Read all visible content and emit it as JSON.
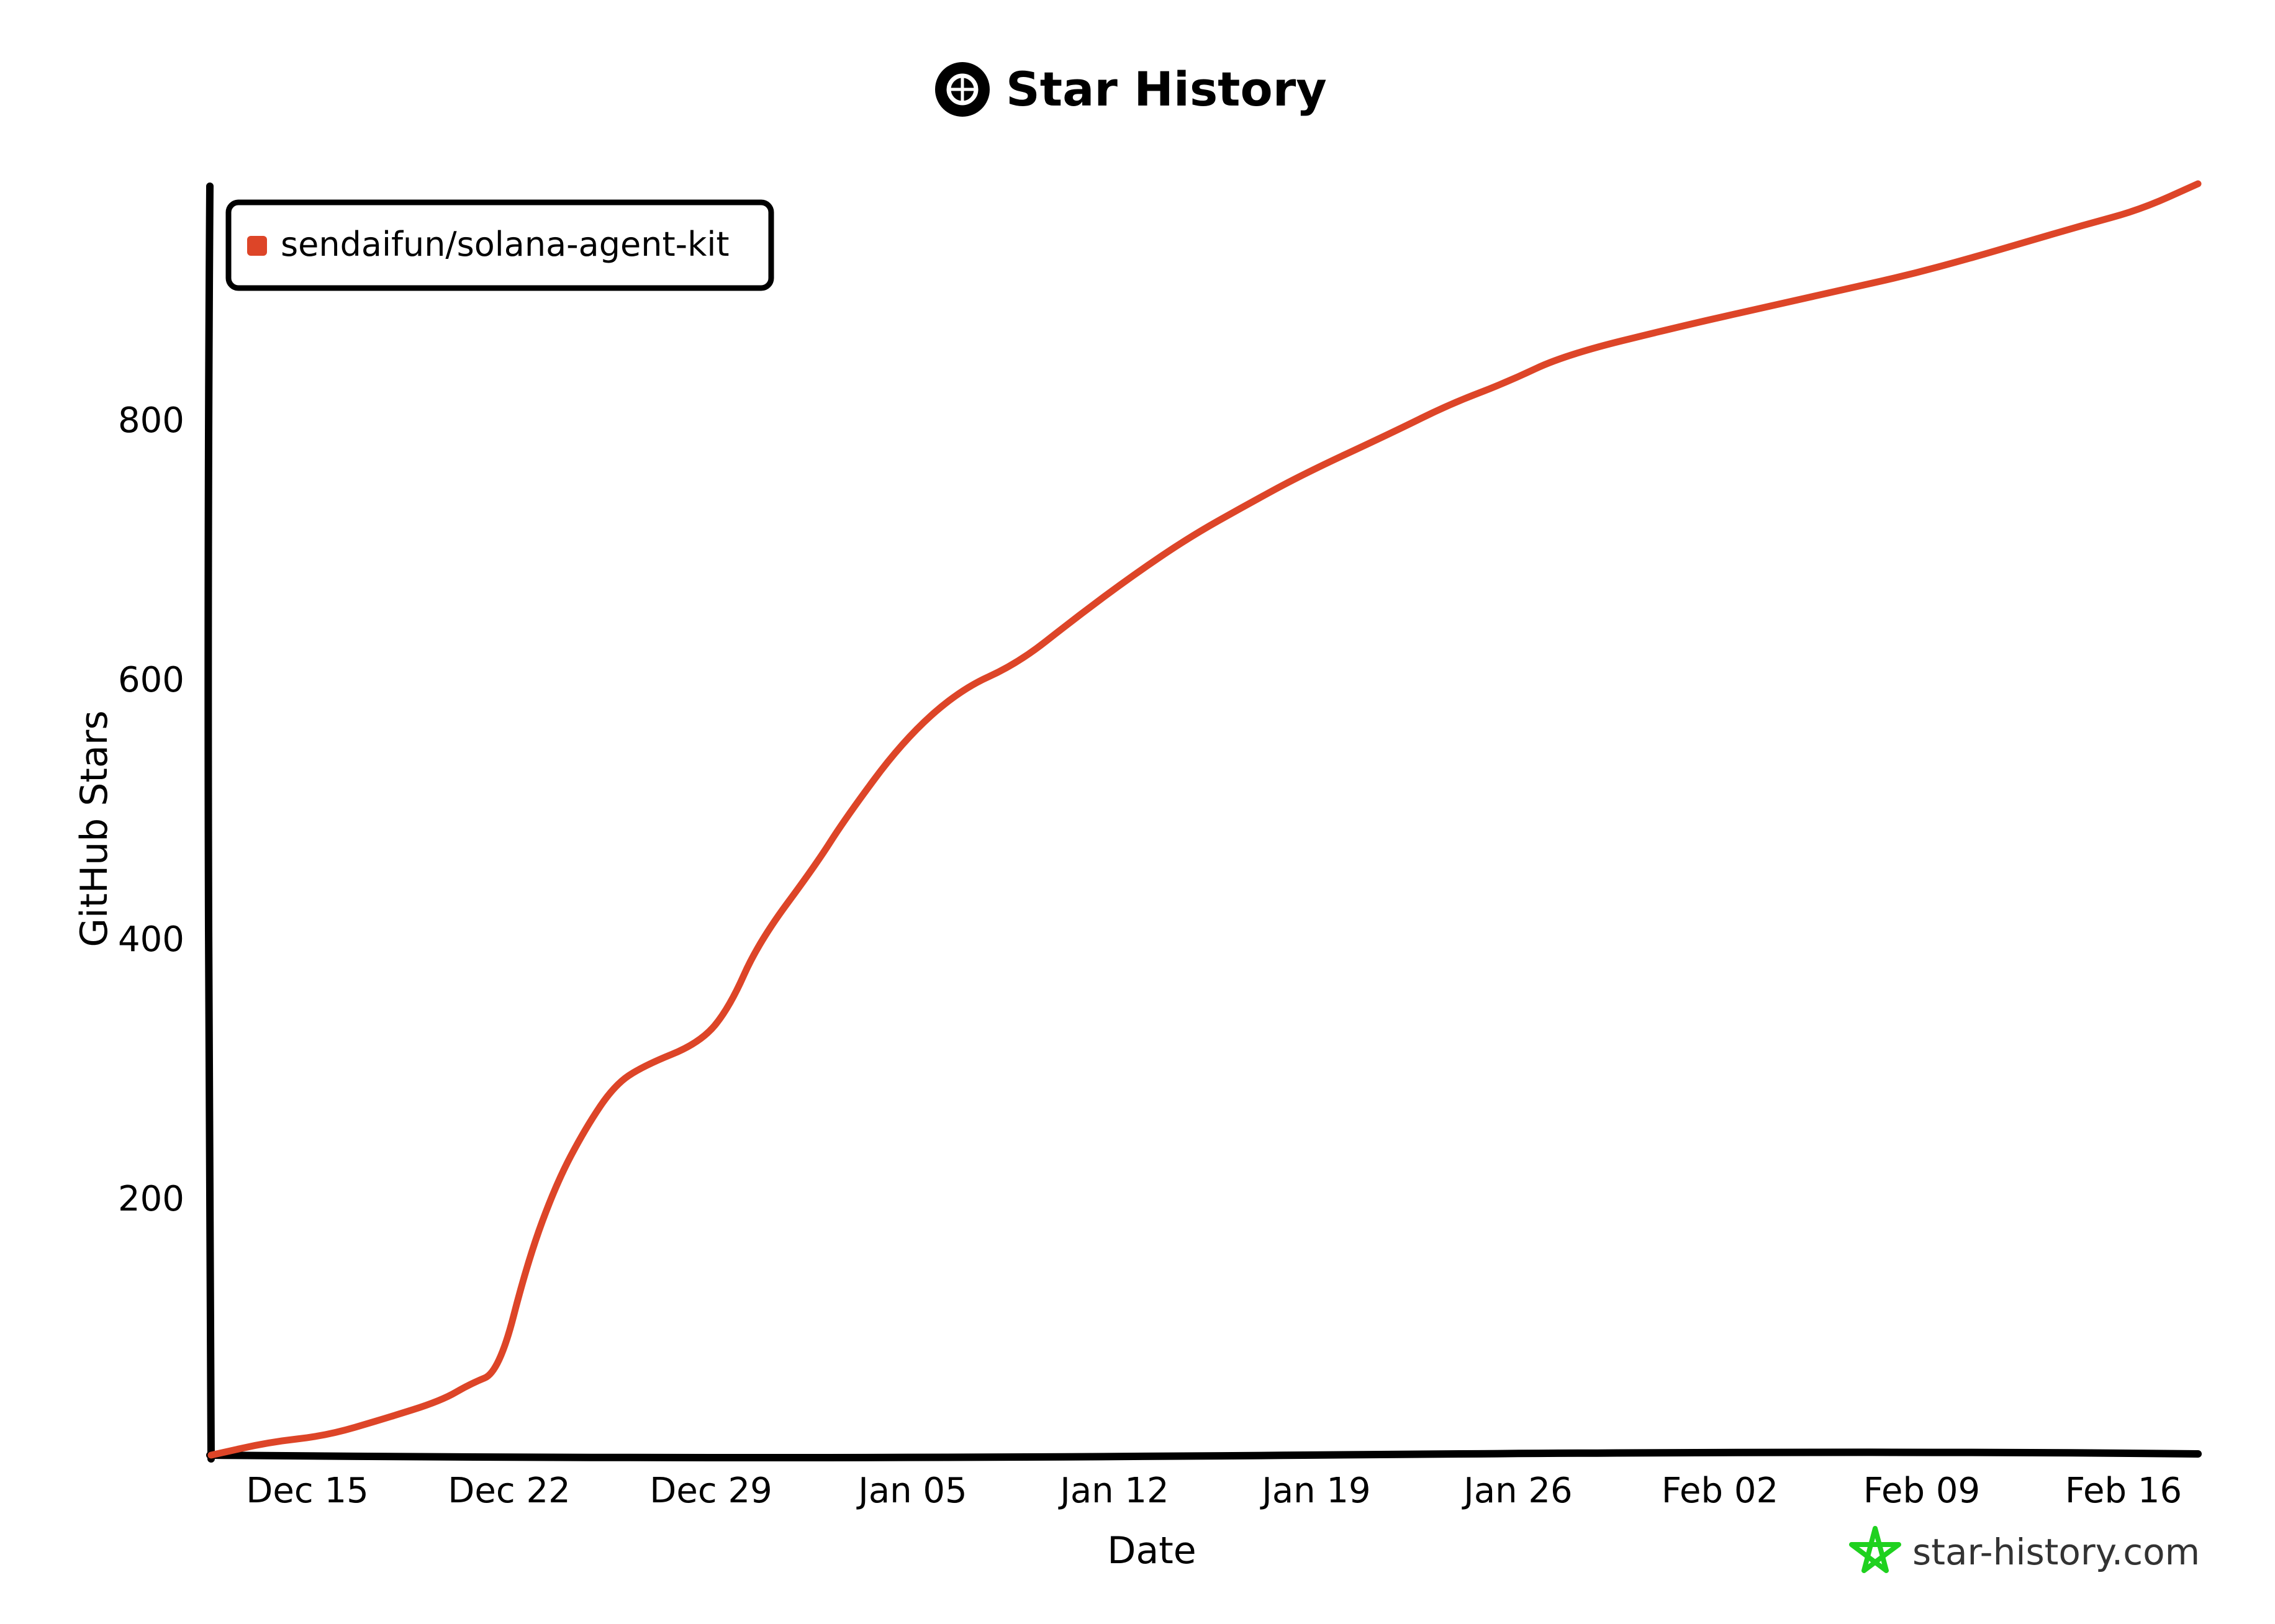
{
  "title": "Star History",
  "watermark": "star-history.com",
  "colors": {
    "series": "#dd4528",
    "axis": "#000000",
    "watermark_icon": "#1fd11f"
  },
  "chart_data": {
    "type": "line",
    "title": "Star History",
    "xlabel": "Date",
    "ylabel": "GitHub Stars",
    "x_tick_labels": [
      "Dec 15",
      "Dec 22",
      "Dec 29",
      "Jan 05",
      "Jan 12",
      "Jan 19",
      "Jan 26",
      "Feb 02",
      "Feb 09",
      "Feb 16"
    ],
    "y_tick_labels": [
      "200",
      "400",
      "600",
      "800"
    ],
    "y_ticks": [
      200,
      400,
      600,
      800
    ],
    "ylim": [
      0,
      980
    ],
    "x_days": [
      "2024-12-12",
      "2025-02-19"
    ],
    "legend": {
      "position": "top-left",
      "entries": [
        "sendaifun/solana-agent-kit"
      ]
    },
    "grid": false,
    "series": [
      {
        "name": "sendaifun/solana-agent-kit",
        "x": [
          "2024-12-12",
          "2024-12-14",
          "2024-12-16",
          "2024-12-18",
          "2024-12-20",
          "2024-12-21",
          "2024-12-22",
          "2024-12-23",
          "2024-12-24",
          "2024-12-25",
          "2024-12-26",
          "2024-12-27",
          "2024-12-29",
          "2024-12-30",
          "2024-12-31",
          "2025-01-02",
          "2025-01-03",
          "2025-01-05",
          "2025-01-07",
          "2025-01-09",
          "2025-01-11",
          "2025-01-13",
          "2025-01-15",
          "2025-01-17",
          "2025-01-19",
          "2025-01-22",
          "2025-01-24",
          "2025-01-26",
          "2025-01-28",
          "2025-02-01",
          "2025-02-04",
          "2025-02-07",
          "2025-02-09",
          "2025-02-11",
          "2025-02-13",
          "2025-02-15",
          "2025-02-17",
          "2025-02-19"
        ],
        "y": [
          0,
          10,
          15,
          28,
          42,
          55,
          64,
          150,
          210,
          252,
          285,
          300,
          318,
          345,
          395,
          455,
          490,
          550,
          590,
          610,
          645,
          678,
          708,
          733,
          757,
          788,
          810,
          827,
          848,
          870,
          885,
          900,
          910,
          922,
          935,
          948,
          960,
          980
        ]
      }
    ]
  }
}
